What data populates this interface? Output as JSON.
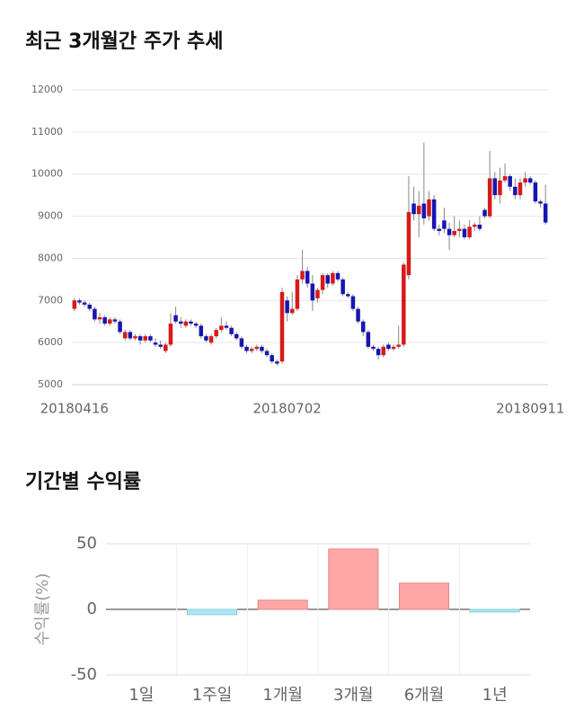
{
  "chart_data": [
    {
      "type": "candlestick",
      "title": "최근 3개월간 주가 추세",
      "up_color": "#d71a1a",
      "down_color": "#1616b0",
      "grid": true,
      "ylim": [
        5000,
        12000
      ],
      "yticks": [
        5000,
        6000,
        7000,
        8000,
        9000,
        10000,
        11000,
        12000
      ],
      "categories": [
        "20180416",
        null,
        null,
        null,
        null,
        null,
        null,
        null,
        null,
        null,
        null,
        null,
        null,
        null,
        null,
        null,
        null,
        null,
        null,
        null,
        null,
        null,
        null,
        null,
        null,
        null,
        null,
        null,
        null,
        null,
        null,
        null,
        null,
        null,
        null,
        null,
        null,
        null,
        null,
        null,
        null,
        null,
        "20180702",
        null,
        null,
        null,
        null,
        null,
        null,
        null,
        null,
        null,
        null,
        null,
        null,
        null,
        null,
        null,
        null,
        null,
        null,
        null,
        null,
        null,
        null,
        null,
        null,
        null,
        null,
        null,
        null,
        null,
        null,
        null,
        null,
        null,
        null,
        null,
        null,
        null,
        null,
        null,
        null,
        null,
        null,
        null,
        null,
        null,
        null,
        null,
        "20180911",
        null,
        null,
        null
      ],
      "ohlc": [
        [
          6800,
          7050,
          6750,
          7000
        ],
        [
          7000,
          7050,
          6900,
          6950
        ],
        [
          6950,
          7000,
          6850,
          6900
        ],
        [
          6900,
          6950,
          6750,
          6800
        ],
        [
          6800,
          6850,
          6500,
          6550
        ],
        [
          6550,
          6700,
          6450,
          6600
        ],
        [
          6600,
          6650,
          6400,
          6450
        ],
        [
          6450,
          6600,
          6400,
          6550
        ],
        [
          6550,
          6600,
          6450,
          6500
        ],
        [
          6500,
          6550,
          6200,
          6250
        ],
        [
          6100,
          6300,
          6050,
          6250
        ],
        [
          6250,
          6300,
          6050,
          6100
        ],
        [
          6100,
          6200,
          6050,
          6150
        ],
        [
          6150,
          6200,
          5950,
          6050
        ],
        [
          6050,
          6200,
          6000,
          6150
        ],
        [
          6150,
          6200,
          6000,
          6050
        ],
        [
          6000,
          6100,
          5900,
          5950
        ],
        [
          5950,
          6050,
          5850,
          5900
        ],
        [
          5800,
          6000,
          5750,
          5950
        ],
        [
          5950,
          6700,
          5900,
          6450
        ],
        [
          6650,
          6850,
          6450,
          6500
        ],
        [
          6500,
          6600,
          6350,
          6450
        ],
        [
          6400,
          6550,
          6350,
          6500
        ],
        [
          6500,
          6550,
          6400,
          6450
        ],
        [
          6450,
          6500,
          6350,
          6400
        ],
        [
          6400,
          6450,
          6100,
          6150
        ],
        [
          6150,
          6200,
          6000,
          6050
        ],
        [
          6000,
          6200,
          5950,
          6150
        ],
        [
          6150,
          6350,
          6100,
          6300
        ],
        [
          6300,
          6600,
          6250,
          6400
        ],
        [
          6400,
          6500,
          6300,
          6350
        ],
        [
          6350,
          6400,
          6150,
          6200
        ],
        [
          6200,
          6250,
          6050,
          6100
        ],
        [
          6100,
          6150,
          5850,
          5900
        ],
        [
          5900,
          5950,
          5750,
          5800
        ],
        [
          5800,
          5900,
          5750,
          5850
        ],
        [
          5850,
          5950,
          5800,
          5900
        ],
        [
          5900,
          5950,
          5750,
          5800
        ],
        [
          5800,
          5850,
          5650,
          5700
        ],
        [
          5700,
          5750,
          5500,
          5550
        ],
        [
          5550,
          5600,
          5450,
          5500
        ],
        [
          5550,
          7300,
          5500,
          7200
        ],
        [
          7000,
          7100,
          6500,
          6700
        ],
        [
          6700,
          7200,
          6650,
          6800
        ],
        [
          6800,
          7600,
          6750,
          7500
        ],
        [
          7500,
          8200,
          7400,
          7700
        ],
        [
          7700,
          7800,
          7300,
          7400
        ],
        [
          7400,
          7600,
          6750,
          7000
        ],
        [
          7050,
          7300,
          6950,
          7250
        ],
        [
          7250,
          7650,
          7150,
          7600
        ],
        [
          7600,
          7650,
          7300,
          7400
        ],
        [
          7400,
          7700,
          7350,
          7650
        ],
        [
          7650,
          7700,
          7450,
          7500
        ],
        [
          7500,
          7550,
          7100,
          7150
        ],
        [
          7150,
          7200,
          7050,
          7100
        ],
        [
          7100,
          7150,
          6750,
          6800
        ],
        [
          6800,
          6850,
          6450,
          6500
        ],
        [
          6500,
          6550,
          6150,
          6250
        ],
        [
          6250,
          6300,
          5850,
          5900
        ],
        [
          5900,
          5950,
          5800,
          5850
        ],
        [
          5850,
          5900,
          5600,
          5700
        ],
        [
          5700,
          5950,
          5650,
          5900
        ],
        [
          5950,
          6000,
          5800,
          5850
        ],
        [
          5850,
          5950,
          5800,
          5900
        ],
        [
          5900,
          6400,
          5850,
          5950
        ],
        [
          5950,
          7900,
          5900,
          7850
        ],
        [
          7600,
          9950,
          7500,
          9100
        ],
        [
          9300,
          9700,
          8900,
          9050
        ],
        [
          9050,
          9600,
          8500,
          9250
        ],
        [
          9300,
          10750,
          8800,
          8950
        ],
        [
          9000,
          9600,
          8900,
          9400
        ],
        [
          9400,
          9500,
          8650,
          8700
        ],
        [
          8700,
          8800,
          8550,
          8650
        ],
        [
          8900,
          9200,
          8600,
          8700
        ],
        [
          8700,
          8850,
          8200,
          8550
        ],
        [
          8550,
          9000,
          8500,
          8650
        ],
        [
          8650,
          8900,
          8500,
          8700
        ],
        [
          8700,
          8800,
          8450,
          8500
        ],
        [
          8500,
          8900,
          8450,
          8750
        ],
        [
          8750,
          8850,
          8650,
          8800
        ],
        [
          8800,
          9000,
          8650,
          8700
        ],
        [
          9150,
          9200,
          8950,
          9000
        ],
        [
          9000,
          10550,
          8950,
          9900
        ],
        [
          9900,
          10050,
          9400,
          9500
        ],
        [
          9500,
          10150,
          9300,
          9850
        ],
        [
          9850,
          10250,
          9800,
          9950
        ],
        [
          9950,
          10000,
          9600,
          9700
        ],
        [
          9700,
          9900,
          9400,
          9500
        ],
        [
          9500,
          9900,
          9400,
          9800
        ],
        [
          9800,
          10050,
          9700,
          9900
        ],
        [
          9900,
          9950,
          9750,
          9800
        ],
        [
          9800,
          9850,
          9300,
          9350
        ],
        [
          9350,
          9400,
          9200,
          9300
        ],
        [
          9300,
          9750,
          8800,
          8850
        ]
      ]
    },
    {
      "type": "bar",
      "title": "기간별 수익률",
      "ylabel": "수익률(%)",
      "categories": [
        "1일",
        "1주일",
        "1개월",
        "3개월",
        "6개월",
        "1년"
      ],
      "values": [
        0,
        -4,
        7,
        46,
        20,
        -2
      ],
      "pos_color": "#ffa6a6",
      "neg_color": "#a8e8f2",
      "ylim": [
        -50,
        50
      ],
      "yticks": [
        -50,
        0,
        50
      ],
      "grid": true
    }
  ]
}
